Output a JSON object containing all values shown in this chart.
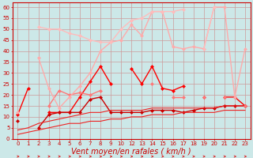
{
  "bg_color": "#cce8e8",
  "grid_color": "#cc9999",
  "xlabel": "Vent moyen/en rafales ( km/h )",
  "xlabel_color": "#cc0000",
  "xlabel_fontsize": 7,
  "tick_color": "#cc0000",
  "tick_fontsize": 5,
  "spine_color": "#cc0000",
  "ylim": [
    0,
    62
  ],
  "yticks": [
    0,
    5,
    10,
    15,
    20,
    25,
    30,
    35,
    40,
    45,
    50,
    55,
    60
  ],
  "x_labels": [
    "0",
    "1",
    "2",
    "3",
    "4",
    "5",
    "6",
    "7",
    "8",
    "9",
    "10",
    "12",
    "13",
    "14",
    "15",
    "16",
    "17",
    "18",
    "19",
    "20",
    "21",
    "22",
    "23"
  ],
  "series": [
    {
      "color": "#ff0000",
      "lw": 1.0,
      "ms": 2.5,
      "y": [
        11,
        23,
        null,
        12,
        12,
        12,
        19,
        26,
        33,
        25,
        null,
        32,
        25,
        33,
        23,
        22,
        24,
        null,
        19,
        null,
        19,
        19,
        15
      ]
    },
    {
      "color": "#cc0000",
      "lw": 1.0,
      "ms": 2.5,
      "y": [
        8,
        null,
        5,
        11,
        12,
        12,
        12,
        18,
        19,
        12,
        12,
        12,
        12,
        13,
        13,
        13,
        12,
        13,
        14,
        14,
        15,
        15,
        15
      ]
    },
    {
      "color": "#ee2222",
      "lw": 0.8,
      "ms": 0,
      "y": [
        2,
        3,
        4,
        5,
        6,
        7,
        7,
        8,
        8,
        9,
        9,
        10,
        10,
        11,
        11,
        11,
        12,
        12,
        12,
        12,
        13,
        13,
        13
      ]
    },
    {
      "color": "#ee2222",
      "lw": 0.8,
      "ms": 0,
      "y": [
        4,
        5,
        7,
        8,
        9,
        10,
        11,
        12,
        12,
        13,
        13,
        13,
        13,
        14,
        14,
        14,
        14,
        14,
        14,
        14,
        15,
        15,
        15
      ]
    },
    {
      "color": "#ff7777",
      "lw": 1.0,
      "ms": 2.5,
      "y": [
        null,
        null,
        null,
        15,
        22,
        20,
        21,
        20,
        22,
        null,
        null,
        null,
        null,
        25,
        null,
        19,
        19,
        null,
        19,
        null,
        19,
        null,
        15
      ]
    },
    {
      "color": "#ffaaaa",
      "lw": 1.0,
      "ms": 2.5,
      "y": [
        12,
        null,
        37,
        23,
        14,
        19,
        24,
        30,
        40,
        44,
        45,
        52,
        47,
        58,
        58,
        42,
        41,
        42,
        41,
        60,
        60,
        19,
        41
      ]
    },
    {
      "color": "#ffbbbb",
      "lw": 1.0,
      "ms": 2.5,
      "y": [
        null,
        null,
        51,
        50,
        50,
        48,
        47,
        45,
        44,
        44,
        50,
        54,
        55,
        58,
        58,
        58,
        59,
        null,
        41,
        60,
        null,
        null,
        null
      ]
    }
  ]
}
